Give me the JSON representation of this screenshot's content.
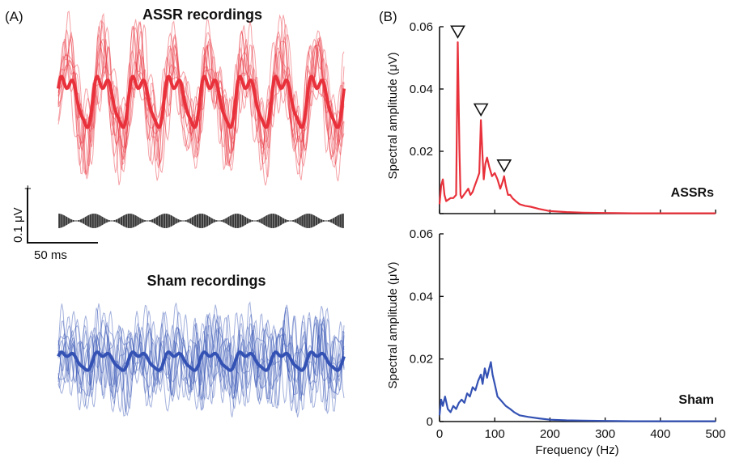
{
  "colors": {
    "assr": "#e8313b",
    "sham": "#3452b4",
    "axis": "#111111",
    "envelope": "#3a3a3a"
  },
  "panel_a": {
    "label": "(A)",
    "assr_title": "ASSR recordings",
    "sham_title": "Sham recordings",
    "scale_bar": {
      "amplitude": "0.1 μV",
      "polarity": "+",
      "time": "50 ms"
    },
    "stimulus_envelope_cycles": 8
  },
  "panel_b": {
    "label": "(B)",
    "ylabel": "Spectral amplitude (μV)",
    "xlabel": "Frequency (Hz)",
    "xticks": [
      "0",
      "100",
      "200",
      "300",
      "400",
      "500"
    ],
    "yticks": [
      "0",
      "0.02",
      "0.04",
      "0.06"
    ],
    "assr_tag": "ASSRs",
    "sham_tag": "Sham"
  },
  "chart_data": [
    {
      "type": "line",
      "panel": "B-top",
      "tag": "ASSRs",
      "xlabel": "Frequency (Hz)",
      "ylabel": "Spectral amplitude (μV)",
      "xlim": [
        0,
        500
      ],
      "ylim": [
        0,
        0.06
      ],
      "grid": false,
      "series": [
        {
          "color": "#e8313b",
          "x": [
            0,
            3,
            6,
            9,
            12,
            16,
            20,
            25,
            30,
            33,
            36,
            38,
            40,
            44,
            48,
            52,
            56,
            60,
            64,
            68,
            72,
            75,
            78,
            80,
            83,
            86,
            90,
            95,
            100,
            105,
            110,
            114,
            117,
            120,
            124,
            128,
            132,
            138,
            145,
            155,
            165,
            180,
            200,
            230,
            260,
            300,
            350,
            400,
            450,
            500
          ],
          "y": [
            0.003,
            0.009,
            0.011,
            0.006,
            0.004,
            0.0045,
            0.005,
            0.005,
            0.006,
            0.055,
            0.02,
            0.006,
            0.005,
            0.006,
            0.007,
            0.008,
            0.006,
            0.007,
            0.009,
            0.011,
            0.013,
            0.03,
            0.018,
            0.011,
            0.016,
            0.018,
            0.015,
            0.012,
            0.013,
            0.011,
            0.008,
            0.01,
            0.012,
            0.009,
            0.006,
            0.006,
            0.005,
            0.004,
            0.003,
            0.0025,
            0.0022,
            0.0015,
            0.0008,
            0.0005,
            0.0003,
            0.0002,
            0.0001,
            0.0001,
            0.0001,
            0.0001
          ]
        }
      ],
      "peak_markers": [
        {
          "x": 33,
          "y": 0.055
        },
        {
          "x": 75,
          "y": 0.03
        },
        {
          "x": 117,
          "y": 0.012
        }
      ]
    },
    {
      "type": "line",
      "panel": "B-bottom",
      "tag": "Sham",
      "xlabel": "Frequency (Hz)",
      "ylabel": "Spectral amplitude (μV)",
      "xlim": [
        0,
        500
      ],
      "ylim": [
        0,
        0.06
      ],
      "grid": false,
      "series": [
        {
          "color": "#3452b4",
          "x": [
            0,
            3,
            6,
            10,
            15,
            20,
            25,
            30,
            35,
            40,
            45,
            50,
            55,
            60,
            65,
            70,
            75,
            78,
            82,
            86,
            90,
            93,
            96,
            100,
            105,
            110,
            115,
            120,
            128,
            135,
            145,
            160,
            180,
            200,
            230,
            260,
            300,
            350,
            400,
            450,
            500
          ],
          "y": [
            0.002,
            0.007,
            0.005,
            0.008,
            0.004,
            0.003,
            0.005,
            0.004,
            0.006,
            0.007,
            0.006,
            0.009,
            0.008,
            0.011,
            0.01,
            0.013,
            0.015,
            0.012,
            0.017,
            0.014,
            0.017,
            0.019,
            0.015,
            0.012,
            0.008,
            0.007,
            0.006,
            0.005,
            0.004,
            0.003,
            0.002,
            0.0015,
            0.001,
            0.0006,
            0.0004,
            0.0003,
            0.0002,
            0.0001,
            0.0001,
            0.0001,
            0.0001
          ]
        }
      ]
    }
  ]
}
